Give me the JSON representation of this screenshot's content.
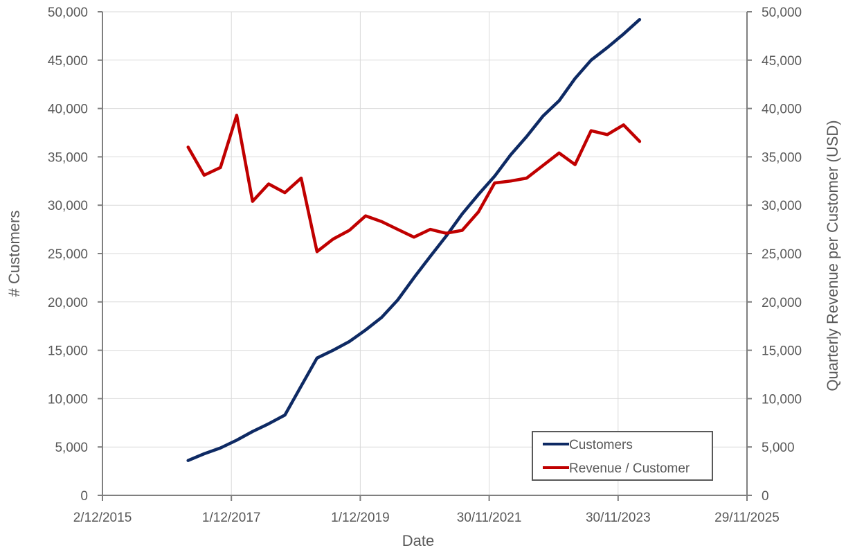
{
  "chart_data": {
    "type": "line",
    "xlabel": "Date",
    "ylabel_left": "# Customers",
    "ylabel_right": "Quarterly Revenue per Customer (USD)",
    "xlim": [
      "2015-12-02",
      "2025-11-29"
    ],
    "x_ticks": [
      "2/12/2015",
      "1/12/2017",
      "1/12/2019",
      "30/11/2021",
      "30/11/2023",
      "29/11/2025"
    ],
    "x_tick_dates": [
      "2015-12-02",
      "2017-12-01",
      "2019-12-01",
      "2021-11-30",
      "2023-11-30",
      "2025-11-29"
    ],
    "ylim_left": [
      0,
      50000
    ],
    "ylim_right": [
      0,
      50000
    ],
    "y_ticks": [
      "0",
      "5,000",
      "10,000",
      "15,000",
      "20,000",
      "25,000",
      "30,000",
      "35,000",
      "40,000",
      "45,000",
      "50,000"
    ],
    "y_tick_values": [
      0,
      5000,
      10000,
      15000,
      20000,
      25000,
      30000,
      35000,
      40000,
      45000,
      50000
    ],
    "grid": true,
    "legend_position": "bottom-right",
    "x": [
      "2017-03-31",
      "2017-06-30",
      "2017-09-30",
      "2017-12-31",
      "2018-03-31",
      "2018-06-30",
      "2018-09-30",
      "2018-12-31",
      "2019-03-31",
      "2019-06-30",
      "2019-09-30",
      "2019-12-31",
      "2020-03-31",
      "2020-06-30",
      "2020-09-30",
      "2020-12-31",
      "2021-03-31",
      "2021-06-30",
      "2021-09-30",
      "2021-12-31",
      "2022-03-31",
      "2022-06-30",
      "2022-09-30",
      "2022-12-31",
      "2023-03-31",
      "2023-06-30",
      "2023-09-30",
      "2023-12-31",
      "2024-03-31",
      "2024-06-30"
    ],
    "series": [
      {
        "name": "Customers",
        "axis": "left",
        "color": "#0e2a64",
        "values": [
          3600,
          4300,
          4900,
          5700,
          6600,
          7400,
          8300,
          11300,
          14200,
          15000,
          15900,
          17100,
          18400,
          20200,
          22500,
          24700,
          26800,
          29100,
          31100,
          33000,
          35200,
          37100,
          39200,
          40800,
          43100,
          45000,
          46300,
          47700,
          49200,
          null
        ]
      },
      {
        "name": "Revenue / Customer",
        "axis": "right",
        "color": "#c00000",
        "values": [
          36000,
          33100,
          33900,
          39300,
          30400,
          32200,
          31300,
          32800,
          25200,
          26500,
          27400,
          28900,
          28300,
          27500,
          26700,
          27500,
          27100,
          27400,
          29300,
          32300,
          32500,
          32800,
          34100,
          35400,
          34200,
          37700,
          37300,
          38300,
          36600,
          null
        ]
      }
    ]
  }
}
